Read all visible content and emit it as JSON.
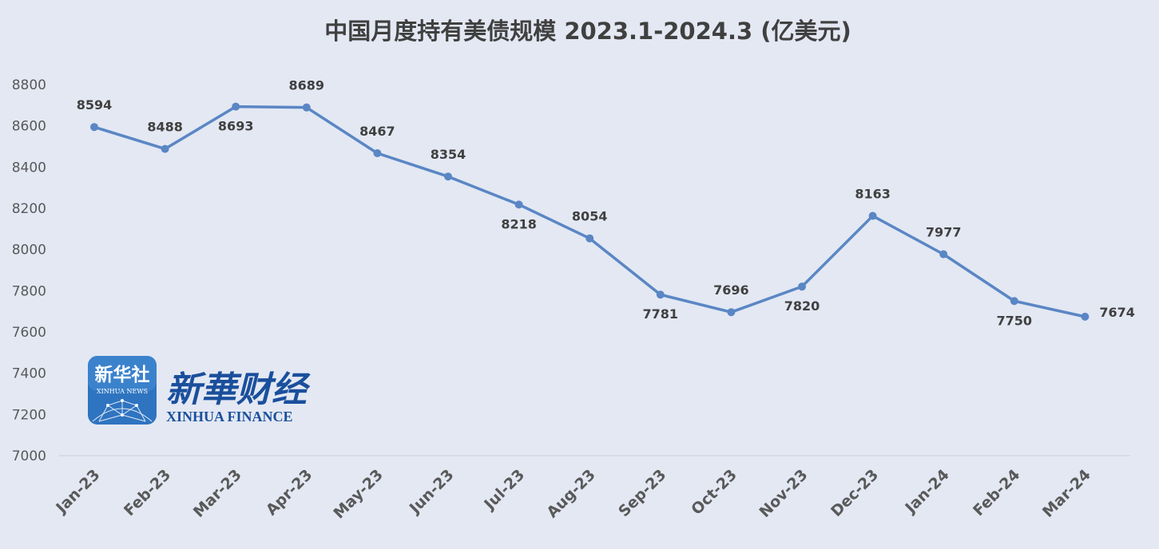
{
  "chart_data": {
    "type": "line",
    "title": "中国月度持有美债规模 2023.1-2024.3 (亿美元)",
    "categories": [
      "Jan-23",
      "Feb-23",
      "Mar-23",
      "Apr-23",
      "May-23",
      "Jun-23",
      "Jul-23",
      "Aug-23",
      "Sep-23",
      "Oct-23",
      "Nov-23",
      "Dec-23",
      "Jan-24",
      "Feb-24",
      "Mar-24"
    ],
    "series": [
      {
        "values": [
          8594,
          8488,
          8693,
          8689,
          8467,
          8354,
          8218,
          8054,
          7781,
          7696,
          7820,
          8163,
          7977,
          7750,
          7674
        ]
      }
    ],
    "ylim": [
      7000,
      8800
    ],
    "yticks": [
      7000,
      7200,
      7400,
      7600,
      7800,
      8000,
      8200,
      8400,
      8600,
      8800
    ],
    "label_position": [
      "above",
      "above",
      "below",
      "above",
      "above",
      "above",
      "below",
      "above",
      "below",
      "above",
      "below",
      "above",
      "above",
      "below",
      "right"
    ],
    "grid": false,
    "line_color": "#5a86c4"
  },
  "logo": {
    "badge_text": "新华社",
    "badge_subtext": "XINHUA NEWS",
    "brand_cn": "新華财经",
    "brand_en": "XINHUA FINANCE",
    "badge_color": "#2f74c0",
    "brand_color": "#1a4f9c"
  }
}
